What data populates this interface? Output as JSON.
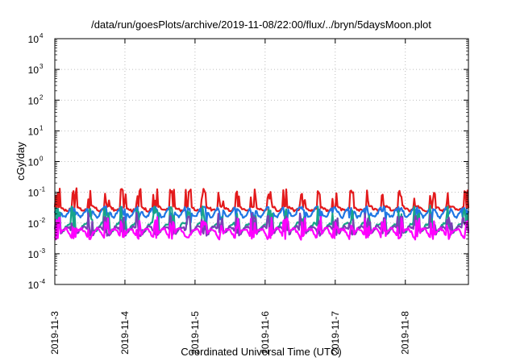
{
  "chart_data": {
    "type": "line",
    "title": "/data/run/goesPlots/archive/2019-11-08/22:00/flux/../bryn/5daysMoon.plot",
    "xlabel": "Coordinated Universal Time (UTC)",
    "ylabel": "cGy/day",
    "y_scale": "log",
    "ylim": [
      -4,
      4
    ],
    "y_ticks": [
      {
        "base": "10",
        "exp": "4"
      },
      {
        "base": "10",
        "exp": "3"
      },
      {
        "base": "10",
        "exp": "2"
      },
      {
        "base": "10",
        "exp": "1"
      },
      {
        "base": "10",
        "exp": "0"
      },
      {
        "base": "10",
        "exp": "-1"
      },
      {
        "base": "10",
        "exp": "-2"
      },
      {
        "base": "10",
        "exp": "-3"
      },
      {
        "base": "10",
        "exp": "-4"
      }
    ],
    "x_ticks": [
      "2019-11-3",
      "2019-11-4",
      "2019-11-5",
      "2019-11-6",
      "2019-11-7",
      "2019-11-8"
    ],
    "xlim_days": [
      0,
      5.9
    ],
    "grid": true,
    "legend": "none",
    "series": [
      {
        "color": "#e31a1c",
        "base": 0.03,
        "spike_dir": "up",
        "mod_amp": 0.15
      },
      {
        "color": "#1f77e4",
        "base": 0.024,
        "spike_dir": "down",
        "mod_amp": 0.35
      },
      {
        "color": "#17a589",
        "base": 0.0075,
        "spike_dir": "up",
        "mod_amp": 0.3
      },
      {
        "color": "#7b3fb5",
        "base": 0.0058,
        "spike_dir": "up",
        "mod_amp": 0.3
      },
      {
        "color": "#ff00ff",
        "base": 0.0048,
        "spike_dir": "up",
        "mod_amp": 0.35
      }
    ]
  }
}
